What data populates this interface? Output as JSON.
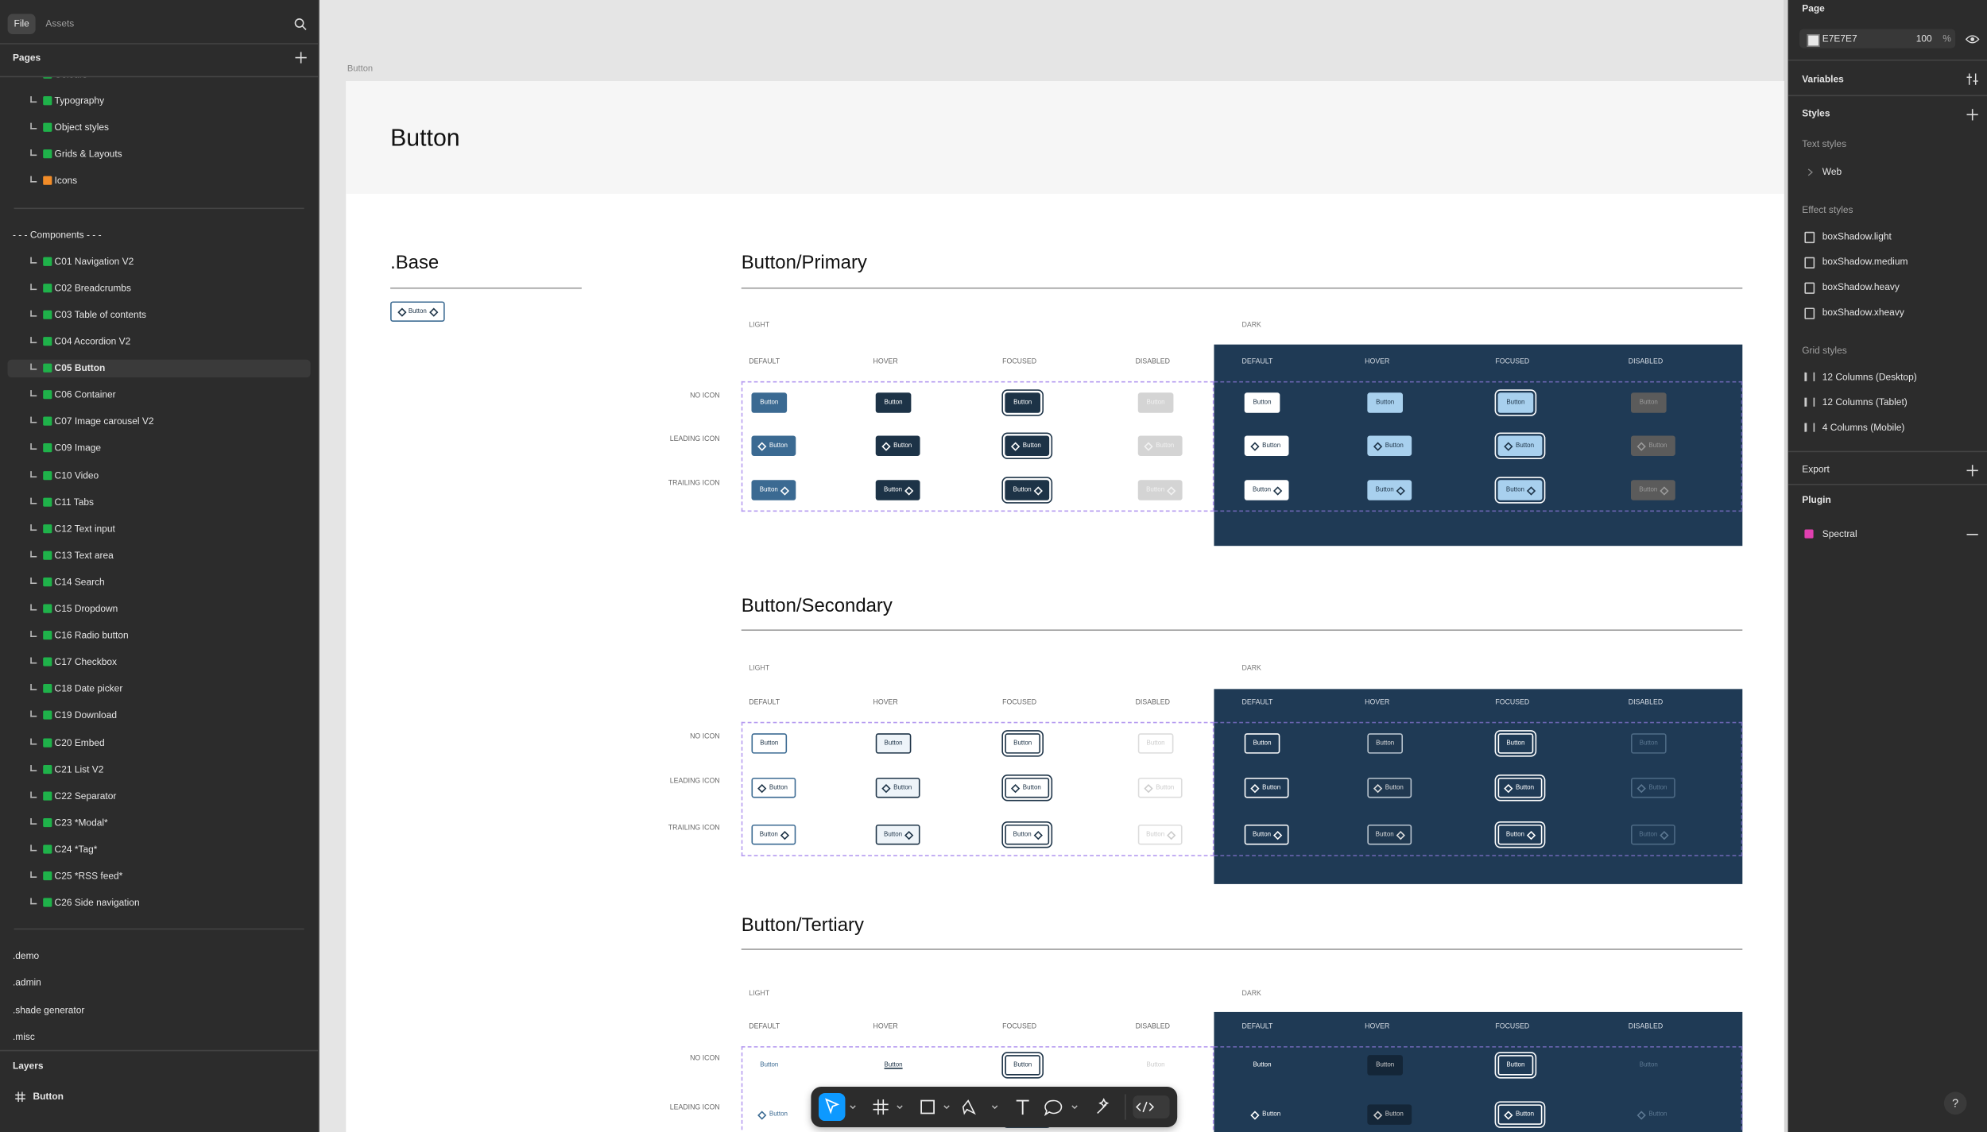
{
  "sidebar": {
    "tabs": [
      "File",
      "Assets"
    ],
    "pages_title": "Pages",
    "page_groups": [
      [
        {
          "label": "Colours",
          "icon": "#1fb24a"
        },
        {
          "label": "Typography",
          "icon": "#1fb24a"
        },
        {
          "label": "Object styles",
          "icon": "#1fb24a"
        },
        {
          "label": "Grids & Layouts",
          "icon": "#1fb24a"
        },
        {
          "label": "Icons",
          "icon": "#f28c28"
        }
      ],
      [
        {
          "label": "- - - Components - - -"
        },
        {
          "label": "C01 Navigation V2",
          "icon": "#1fb24a"
        },
        {
          "label": "C02 Breadcrumbs",
          "icon": "#1fb24a"
        },
        {
          "label": "C03 Table of contents",
          "icon": "#1fb24a"
        },
        {
          "label": "C04 Accordion V2",
          "icon": "#1fb24a"
        },
        {
          "label": "C05 Button",
          "icon": "#1fb24a",
          "selected": true
        },
        {
          "label": "C06 Container",
          "icon": "#1fb24a"
        },
        {
          "label": "C07 Image carousel V2",
          "icon": "#1fb24a"
        },
        {
          "label": "C09 Image",
          "icon": "#1fb24a"
        },
        {
          "label": "C10 Video",
          "icon": "#1fb24a"
        },
        {
          "label": "C11 Tabs",
          "icon": "#1fb24a"
        },
        {
          "label": "C12 Text input",
          "icon": "#1fb24a"
        },
        {
          "label": "C13 Text area",
          "icon": "#1fb24a"
        },
        {
          "label": "C14 Search",
          "icon": "#1fb24a"
        },
        {
          "label": "C15 Dropdown",
          "icon": "#1fb24a"
        },
        {
          "label": "C16 Radio button",
          "icon": "#1fb24a"
        },
        {
          "label": "C17 Checkbox",
          "icon": "#1fb24a"
        },
        {
          "label": "C18 Date picker",
          "icon": "#1fb24a"
        },
        {
          "label": "C19 Download",
          "icon": "#1fb24a"
        },
        {
          "label": "C20 Embed",
          "icon": "#1fb24a"
        },
        {
          "label": "C21 List V2",
          "icon": "#1fb24a"
        },
        {
          "label": "C22 Separator",
          "icon": "#1fb24a"
        },
        {
          "label": "C23 *Modal*",
          "icon": "#1fb24a"
        },
        {
          "label": "C24 *Tag*",
          "icon": "#1fb24a"
        },
        {
          "label": "C25 *RSS feed*",
          "icon": "#1fb24a"
        },
        {
          "label": "C26 Side navigation",
          "icon": "#1fb24a"
        }
      ],
      [
        {
          "label": ".demo"
        },
        {
          "label": ".admin"
        },
        {
          "label": ".shade generator"
        },
        {
          "label": ".misc"
        }
      ]
    ],
    "layers_title": "Layers",
    "layers": [
      "Button"
    ]
  },
  "canvas": {
    "frame_label": "Button",
    "title": "Button",
    "base": {
      "title": ".Base",
      "button": "Button"
    },
    "sections": [
      {
        "title": "Button/Primary",
        "light": "LIGHT",
        "dark": "DARK",
        "states": [
          "DEFAULT",
          "HOVER",
          "FOCUSED",
          "DISABLED"
        ],
        "rows": [
          "NO ICON",
          "LEADING ICON",
          "TRAILING ICON"
        ],
        "button": "Button"
      },
      {
        "title": "Button/Secondary",
        "light": "LIGHT",
        "dark": "DARK",
        "states": [
          "DEFAULT",
          "HOVER",
          "FOCUSED",
          "DISABLED"
        ],
        "rows": [
          "NO ICON",
          "LEADING ICON",
          "TRAILING ICON"
        ],
        "button": "Button"
      },
      {
        "title": "Button/Tertiary",
        "light": "LIGHT",
        "dark": "DARK",
        "states": [
          "DEFAULT",
          "HOVER",
          "FOCUSED",
          "DISABLED"
        ],
        "rows": [
          "NO ICON",
          "LEADING ICON"
        ],
        "button": "Button"
      }
    ]
  },
  "right_panel": {
    "page": {
      "title": "Page",
      "color": "E7E7E7",
      "opacity": 100,
      "unit": "%"
    },
    "variables": "Variables",
    "styles": "Styles",
    "text_styles": {
      "title": "Text styles",
      "items": [
        "Web"
      ]
    },
    "effect_styles": {
      "title": "Effect styles",
      "items": [
        "boxShadow.light",
        "boxShadow.medium",
        "boxShadow.heavy",
        "boxShadow.xheavy"
      ]
    },
    "grid_styles": {
      "title": "Grid styles",
      "items": [
        "12 Columns (Desktop)",
        "12 Columns (Tablet)",
        "4 Columns (Mobile)"
      ]
    },
    "export": "Export",
    "plugin": {
      "title": "Plugin",
      "items": [
        "Spectral"
      ]
    },
    "help": "?"
  }
}
